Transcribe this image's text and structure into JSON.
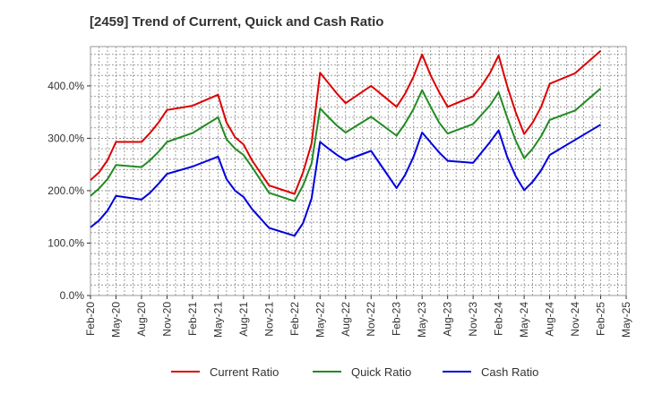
{
  "chart_data": {
    "type": "line",
    "title": "[2459]  Trend of Current, Quick and Cash Ratio",
    "xlabel": "",
    "ylabel": "",
    "ylim": [
      0,
      475
    ],
    "yticks": [
      0,
      100,
      200,
      300,
      400
    ],
    "ytick_labels": [
      "0.0%",
      "100.0%",
      "200.0%",
      "300.0%",
      "400.0%"
    ],
    "xlim": [
      0,
      63
    ],
    "xticks": [
      0,
      3,
      6,
      9,
      12,
      15,
      18,
      21,
      24,
      27,
      30,
      33,
      36,
      39,
      42,
      45,
      48,
      51,
      54,
      57,
      60,
      63
    ],
    "xtick_labels": [
      "Feb-20",
      "May-20",
      "Aug-20",
      "Nov-20",
      "Feb-21",
      "May-21",
      "Aug-21",
      "Nov-21",
      "Feb-22",
      "May-22",
      "Aug-22",
      "Nov-22",
      "Feb-23",
      "May-23",
      "Aug-23",
      "Nov-23",
      "Feb-24",
      "May-24",
      "Aug-24",
      "Nov-24",
      "Feb-25",
      "May-25"
    ],
    "grid": true,
    "legend_position": "bottom",
    "series": [
      {
        "name": "Current Ratio",
        "color": "#dd0000",
        "x": [
          0,
          1,
          2,
          3,
          6,
          7,
          8,
          9,
          12,
          15,
          16,
          17,
          18,
          19,
          21,
          24,
          25,
          26,
          27,
          28,
          29,
          30,
          33,
          36,
          37,
          38,
          39,
          40,
          41,
          42,
          45,
          46,
          47,
          48,
          49,
          50,
          51,
          52,
          53,
          54,
          57,
          60
        ],
        "values": [
          220,
          235,
          258,
          293,
          293,
          310,
          330,
          354,
          362,
          383,
          330,
          302,
          288,
          258,
          210,
          194,
          235,
          290,
          425,
          405,
          385,
          367,
          400,
          360,
          385,
          418,
          460,
          420,
          388,
          360,
          380,
          400,
          425,
          458,
          400,
          350,
          308,
          330,
          360,
          404,
          424,
          467
        ]
      },
      {
        "name": "Quick Ratio",
        "color": "#228b22",
        "x": [
          0,
          1,
          2,
          3,
          6,
          7,
          8,
          9,
          12,
          15,
          16,
          17,
          18,
          19,
          21,
          24,
          25,
          26,
          27,
          28,
          29,
          30,
          33,
          36,
          37,
          38,
          39,
          40,
          41,
          42,
          45,
          46,
          47,
          48,
          49,
          50,
          51,
          52,
          53,
          54,
          57,
          60
        ],
        "values": [
          190,
          204,
          222,
          249,
          245,
          258,
          274,
          293,
          310,
          340,
          298,
          280,
          268,
          245,
          196,
          180,
          210,
          252,
          357,
          340,
          324,
          311,
          341,
          305,
          328,
          356,
          392,
          360,
          330,
          309,
          327,
          345,
          363,
          388,
          340,
          296,
          262,
          280,
          304,
          335,
          353,
          395
        ]
      },
      {
        "name": "Cash Ratio",
        "color": "#0000dd",
        "x": [
          0,
          1,
          2,
          3,
          6,
          7,
          8,
          9,
          12,
          15,
          16,
          17,
          18,
          19,
          21,
          24,
          25,
          26,
          27,
          28,
          29,
          30,
          33,
          36,
          37,
          38,
          39,
          40,
          41,
          42,
          45,
          46,
          47,
          48,
          49,
          50,
          51,
          52,
          53,
          54,
          57,
          60
        ],
        "values": [
          130,
          143,
          162,
          190,
          183,
          196,
          213,
          232,
          246,
          265,
          222,
          200,
          188,
          165,
          129,
          114,
          138,
          185,
          293,
          280,
          268,
          258,
          276,
          205,
          230,
          265,
          311,
          292,
          273,
          257,
          253,
          273,
          293,
          315,
          265,
          228,
          201,
          217,
          239,
          268,
          297,
          326
        ]
      }
    ]
  }
}
